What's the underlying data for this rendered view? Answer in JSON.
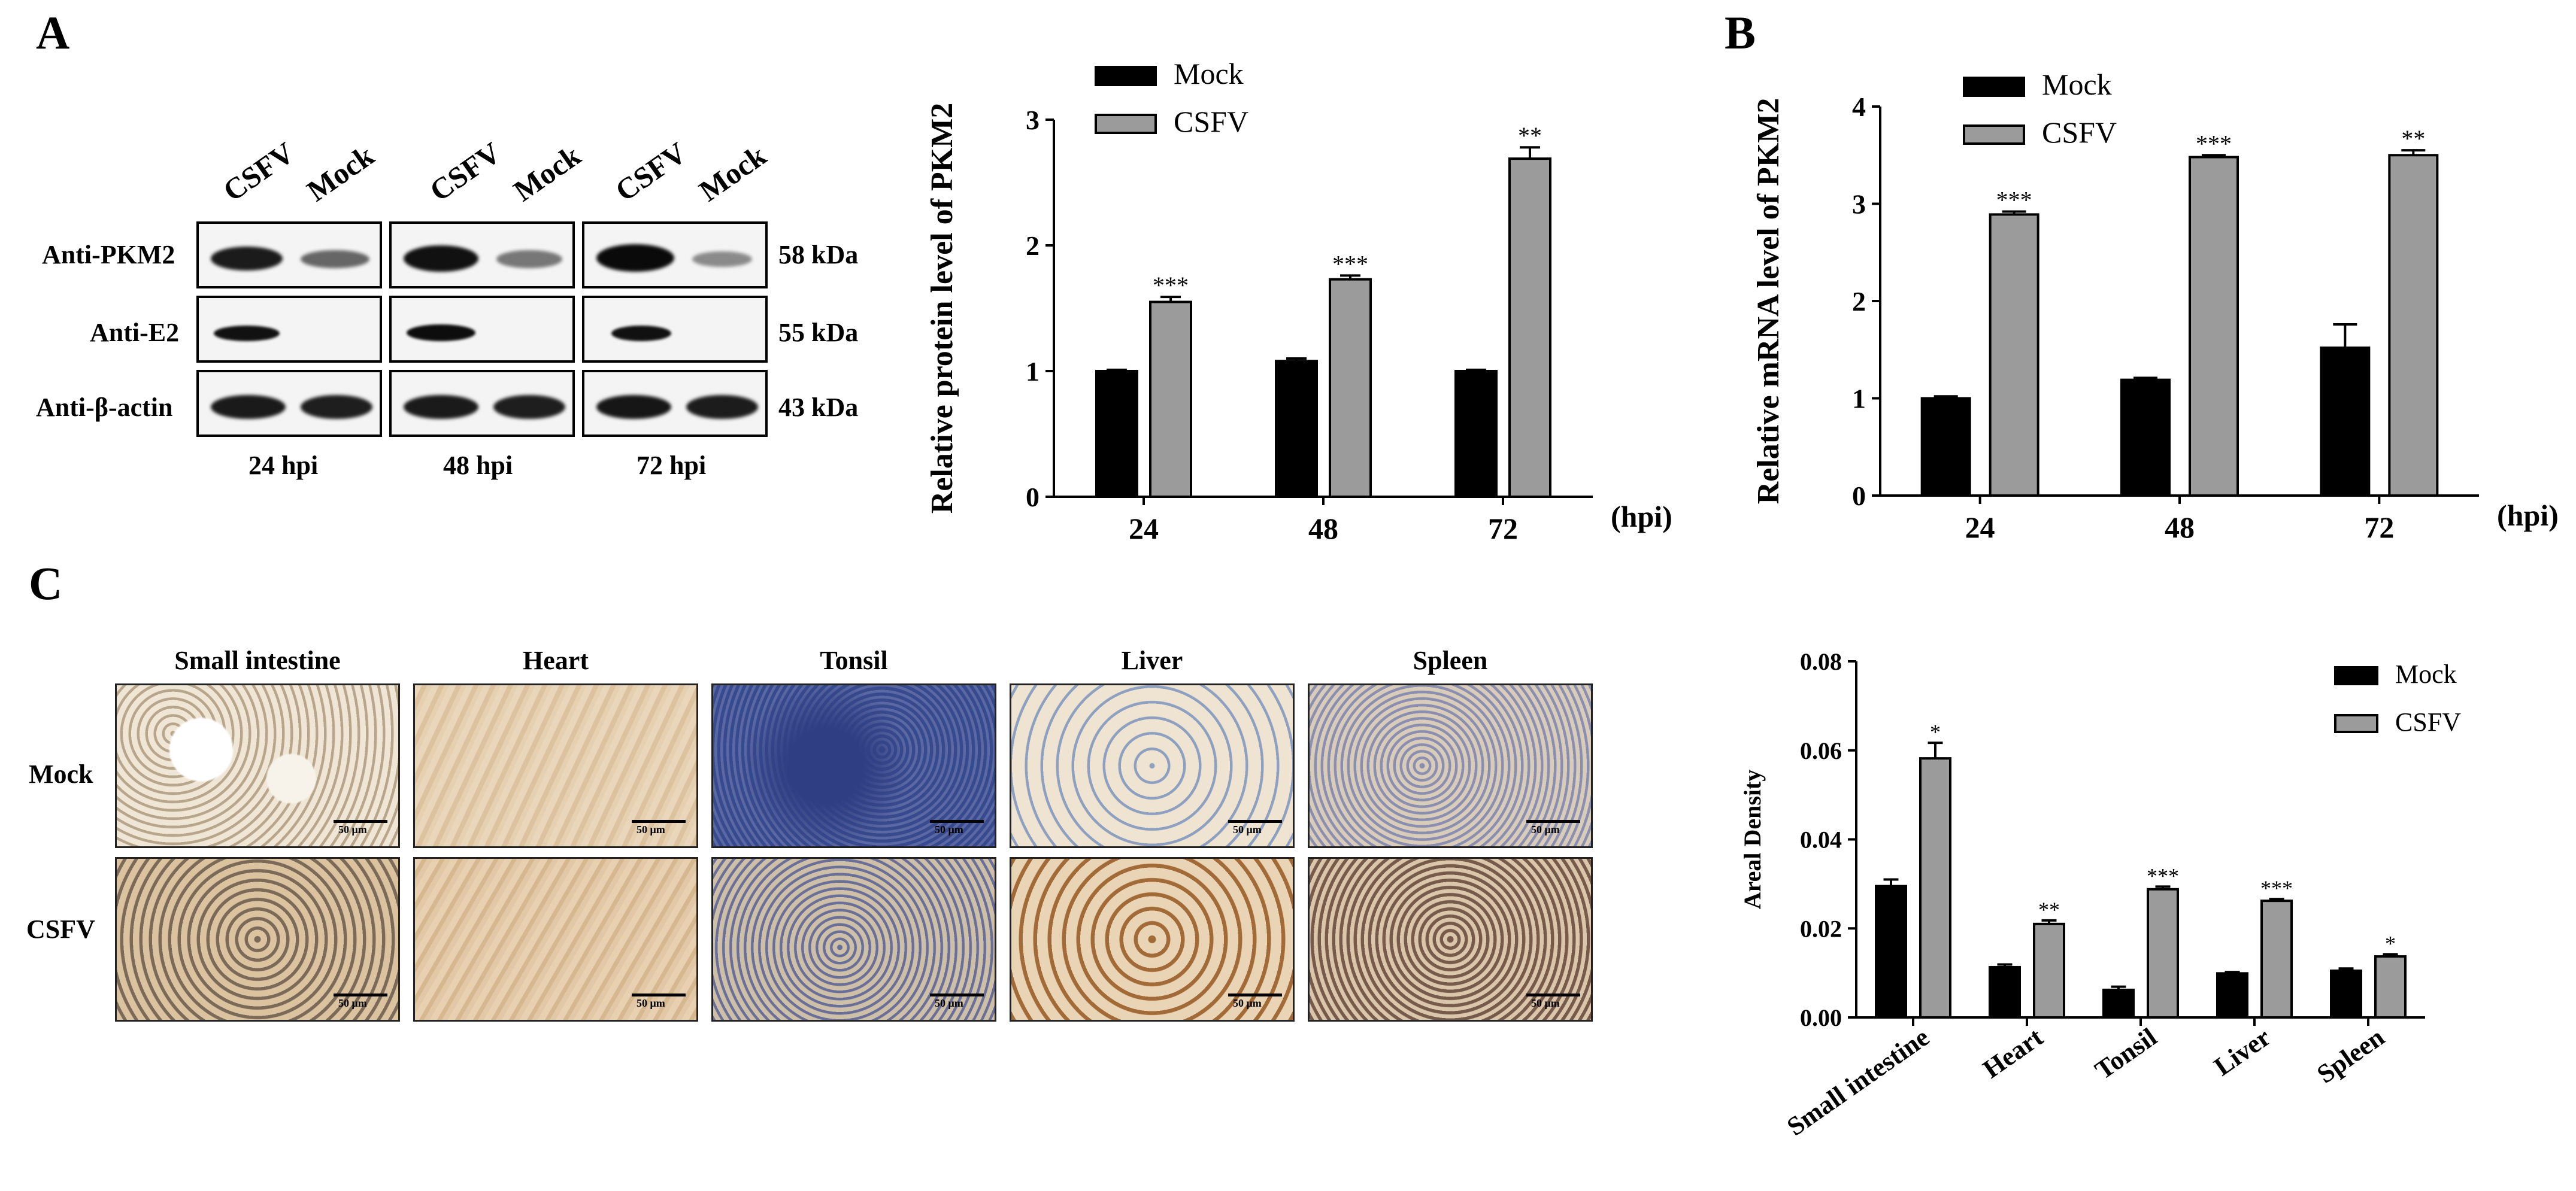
{
  "panels": {
    "a": "A",
    "b": "B",
    "c": "C"
  },
  "blot": {
    "lanes": [
      "CSFV",
      "Mock"
    ],
    "rows": [
      "Anti-PKM2",
      "Anti-E2",
      "Anti-β-actin"
    ],
    "sizes": [
      "58 kDa",
      "55 kDa",
      "43 kDa"
    ],
    "timepoints": [
      "24 hpi",
      "48 hpi",
      "72 hpi"
    ]
  },
  "ihc": {
    "tissues": [
      "Small intestine",
      "Heart",
      "Tonsil",
      "Liver",
      "Spleen"
    ],
    "rows": [
      "Mock",
      "CSFV"
    ],
    "scalebar": "50 μm"
  },
  "colors": {
    "mock": "#000000",
    "csfv": "#9b9b9b"
  },
  "chart_data": [
    {
      "type": "bar",
      "panel": "A",
      "categories": [
        "24",
        "48",
        "72"
      ],
      "xunit": "(hpi)",
      "ylabel": "Relative protein level of PKM2",
      "ylim": [
        0,
        3
      ],
      "yticks": [
        0,
        1,
        2,
        3
      ],
      "legend": "top-left",
      "series": [
        {
          "name": "Mock",
          "values": [
            1.0,
            1.08,
            1.0
          ],
          "errors": [
            0.01,
            0.02,
            0.01
          ]
        },
        {
          "name": "CSFV",
          "values": [
            1.55,
            1.73,
            2.69
          ],
          "errors": [
            0.04,
            0.03,
            0.09
          ]
        }
      ],
      "annotations": [
        "***",
        "***",
        "**"
      ]
    },
    {
      "type": "bar",
      "panel": "B",
      "categories": [
        "24",
        "48",
        "72"
      ],
      "xunit": "(hpi)",
      "ylabel": "Relative mRNA level of PKM2",
      "ylim": [
        0,
        4
      ],
      "yticks": [
        0,
        1,
        2,
        3,
        4
      ],
      "legend": "top-left",
      "series": [
        {
          "name": "Mock",
          "values": [
            1.0,
            1.19,
            1.52
          ],
          "errors": [
            0.02,
            0.02,
            0.24
          ]
        },
        {
          "name": "CSFV",
          "values": [
            2.89,
            3.48,
            3.5
          ],
          "errors": [
            0.03,
            0.02,
            0.05
          ]
        }
      ],
      "annotations": [
        "***",
        "***",
        "**"
      ]
    },
    {
      "type": "bar",
      "panel": "C",
      "categories": [
        "Small intestine",
        "Heart",
        "Tonsil",
        "Liver",
        "Spleen"
      ],
      "ylabel": "Areal Density",
      "ylim": [
        0,
        0.08
      ],
      "yticks": [
        0.0,
        0.02,
        0.04,
        0.06,
        0.08
      ],
      "ytick_labels": [
        "0.00",
        "0.02",
        "0.04",
        "0.06",
        "0.08"
      ],
      "legend": "top-right",
      "series": [
        {
          "name": "Mock",
          "values": [
            0.0295,
            0.0113,
            0.0062,
            0.0099,
            0.0105
          ],
          "errors": [
            0.0015,
            0.0006,
            0.0007,
            0.0003,
            0.0005
          ]
        },
        {
          "name": "CSFV",
          "values": [
            0.0582,
            0.021,
            0.0288,
            0.0262,
            0.0137
          ],
          "errors": [
            0.0035,
            0.0008,
            0.0006,
            0.0004,
            0.0005
          ]
        }
      ],
      "annotations": [
        "*",
        "**",
        "***",
        "***",
        "*"
      ]
    }
  ]
}
